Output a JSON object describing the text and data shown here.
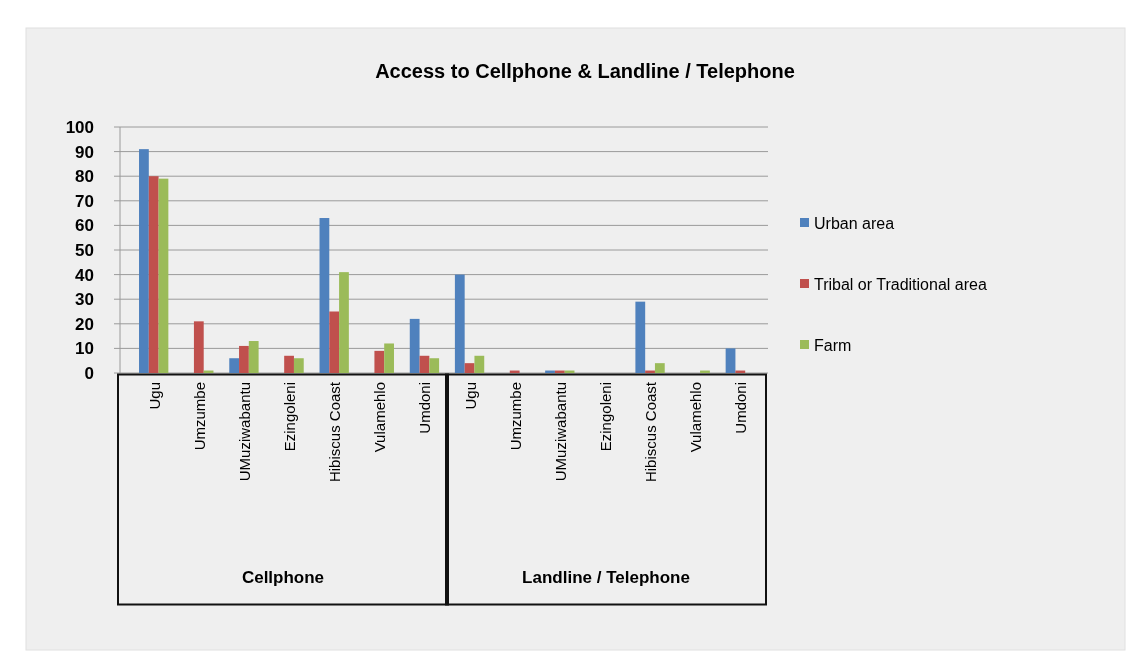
{
  "chart_data": {
    "type": "bar",
    "title": "Access to Cellphone & Landline / Telephone",
    "categories": [
      "Ugu",
      "Umzumbe",
      "UMuziwabantu",
      "Ezingoleni",
      "Hibiscus Coast",
      "Vulamehlo",
      "Umdoni",
      "Ugu",
      "Umzumbe",
      "UMuziwabantu",
      "Ezingoleni",
      "Hibiscus Coast",
      "Vulamehlo",
      "Umdoni"
    ],
    "series": [
      {
        "name": "Urban area",
        "color": "#4f81bd",
        "values": [
          91,
          0,
          6,
          0,
          63,
          0,
          22,
          40,
          0,
          1,
          0,
          29,
          0,
          10
        ]
      },
      {
        "name": "Tribal or Traditional area",
        "color": "#c0504d",
        "values": [
          80,
          21,
          11,
          7,
          25,
          9,
          7,
          4,
          1,
          1,
          0,
          1,
          0,
          1
        ]
      },
      {
        "name": "Farm",
        "color": "#9bbb59",
        "values": [
          79,
          1,
          13,
          6,
          41,
          12,
          6,
          7,
          0,
          1,
          0,
          4,
          1,
          0
        ]
      }
    ],
    "annotations": [
      "Cellphone",
      "Landline / Telephone"
    ],
    "ylim": [
      0,
      100
    ],
    "yticks": [
      0,
      10,
      20,
      30,
      40,
      50,
      60,
      70,
      80,
      90,
      100
    ],
    "grid": "y",
    "legend": "right"
  }
}
